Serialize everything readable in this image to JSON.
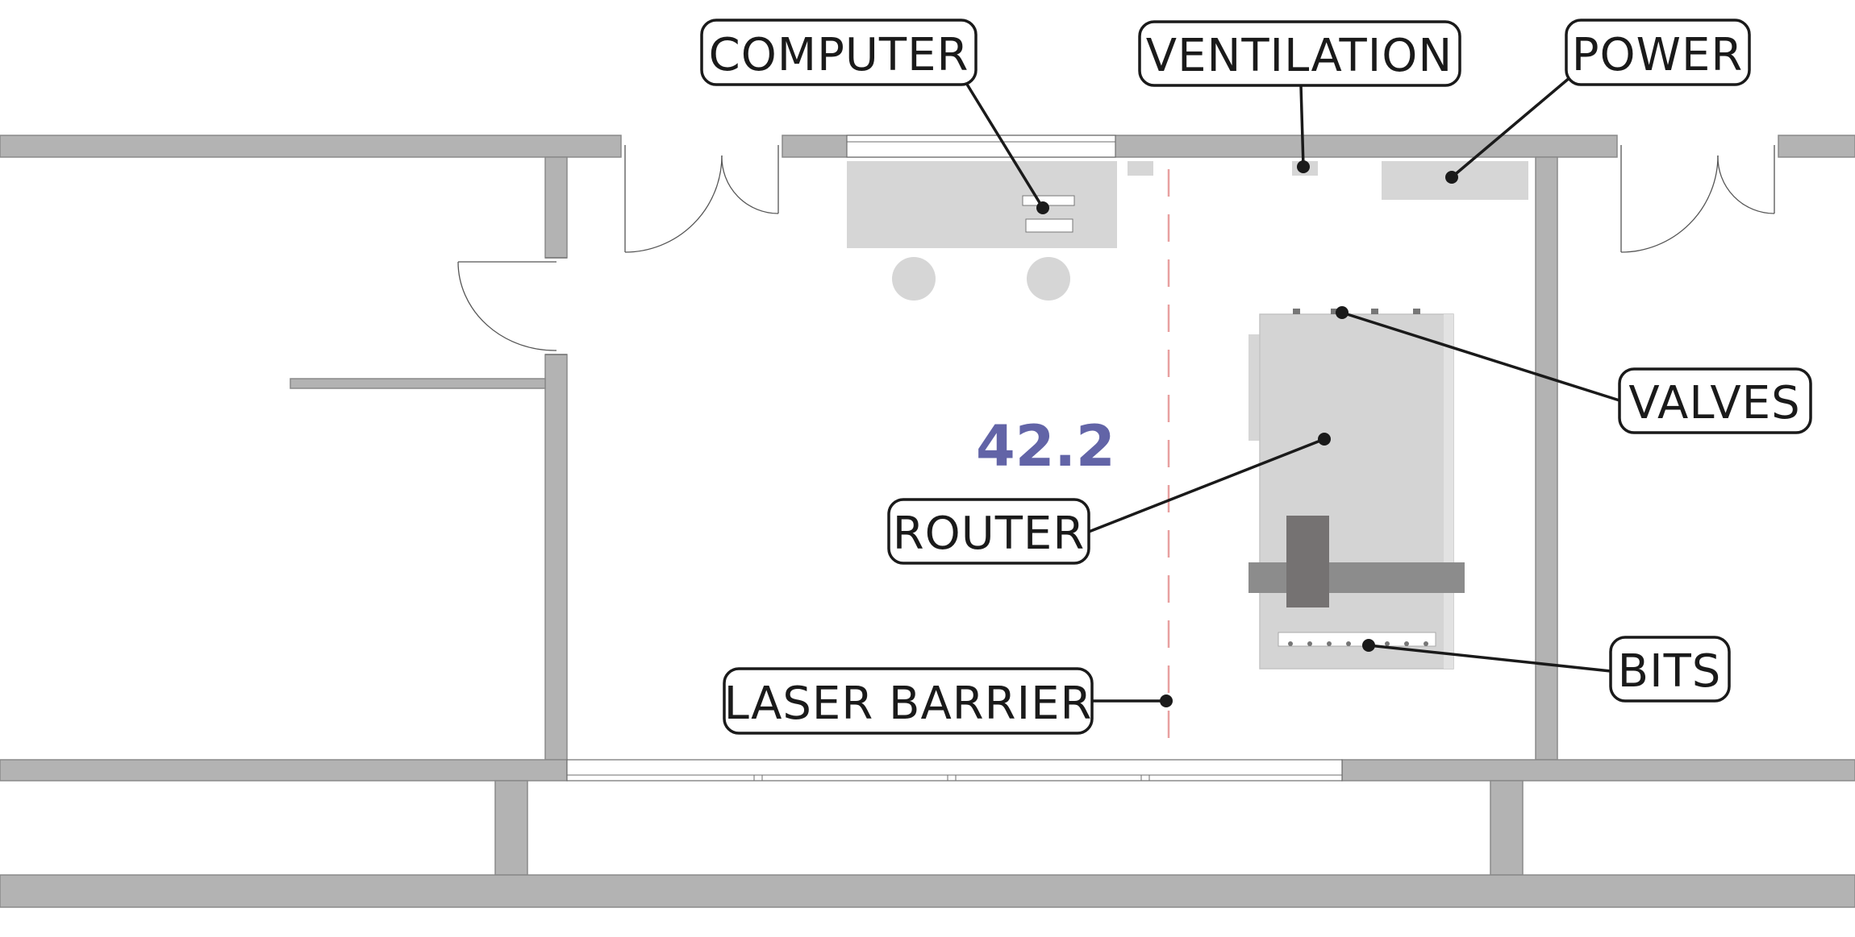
{
  "room_number": "42.2",
  "room_number_color": "#6264a7",
  "barrier_color": "#e8a0a0",
  "callouts": {
    "computer": "COMPUTER",
    "ventilation": "VENTILATION",
    "power": "POWER",
    "valves": "VALVES",
    "router": "ROUTER",
    "bits": "BITS",
    "laser_barrier": "LASER BARRIER"
  }
}
